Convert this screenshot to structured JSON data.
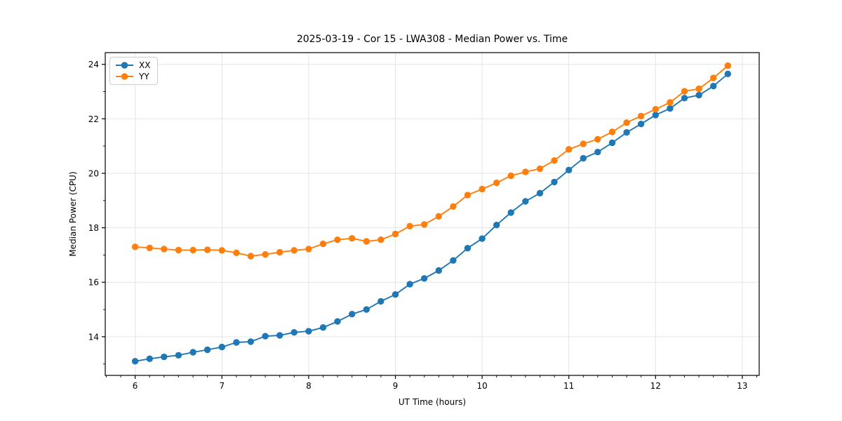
{
  "chart_data": {
    "type": "line",
    "title": "2025-03-19 - Cor 15 - LWA308 - Median Power vs. Time",
    "xlabel": "UT Time (hours)",
    "ylabel": "Median Power (CPU)",
    "xlim": [
      5.655,
      13.195
    ],
    "ylim": [
      12.58,
      24.43
    ],
    "xticks": [
      6,
      7,
      8,
      9,
      10,
      11,
      12,
      13
    ],
    "yticks": [
      14,
      16,
      18,
      20,
      22,
      24
    ],
    "x_minor_step": 0.166667,
    "y_minor_step": 1,
    "grid": true,
    "legend_position": "upper-left",
    "x": [
      6.0,
      6.167,
      6.333,
      6.5,
      6.667,
      6.833,
      7.0,
      7.167,
      7.333,
      7.5,
      7.667,
      7.833,
      8.0,
      8.167,
      8.333,
      8.5,
      8.667,
      8.833,
      9.0,
      9.167,
      9.333,
      9.5,
      9.667,
      9.833,
      10.0,
      10.167,
      10.333,
      10.5,
      10.667,
      10.833,
      11.0,
      11.167,
      11.333,
      11.5,
      11.667,
      11.833,
      12.0,
      12.167,
      12.333,
      12.5,
      12.667,
      12.833
    ],
    "series": [
      {
        "name": "XX",
        "color": "#1f77b4",
        "values": [
          13.1,
          13.19,
          13.26,
          13.32,
          13.43,
          13.52,
          13.62,
          13.79,
          13.82,
          14.02,
          14.05,
          14.16,
          14.2,
          14.34,
          14.56,
          14.83,
          15.0,
          15.3,
          15.55,
          15.93,
          16.14,
          16.43,
          16.8,
          17.25,
          17.6,
          18.1,
          18.56,
          18.97,
          19.27,
          19.68,
          20.12,
          20.55,
          20.78,
          21.12,
          21.5,
          21.81,
          22.14,
          22.38,
          22.76,
          22.87,
          23.2,
          23.65
        ]
      },
      {
        "name": "YY",
        "color": "#ff7f0e",
        "values": [
          17.3,
          17.26,
          17.22,
          17.18,
          17.18,
          17.19,
          17.17,
          17.08,
          16.96,
          17.02,
          17.1,
          17.17,
          17.22,
          17.41,
          17.56,
          17.61,
          17.5,
          17.56,
          17.77,
          18.06,
          18.12,
          18.42,
          18.78,
          19.2,
          19.42,
          19.65,
          19.91,
          20.05,
          20.17,
          20.47,
          20.88,
          21.08,
          21.25,
          21.52,
          21.86,
          22.1,
          22.35,
          22.6,
          23.01,
          23.1,
          23.5,
          23.95
        ]
      }
    ],
    "style": {
      "grid_color": "#e5e5e5",
      "spine_color": "#000000",
      "tick_color": "#000000",
      "label_color": "#000000",
      "background": "#ffffff"
    }
  }
}
